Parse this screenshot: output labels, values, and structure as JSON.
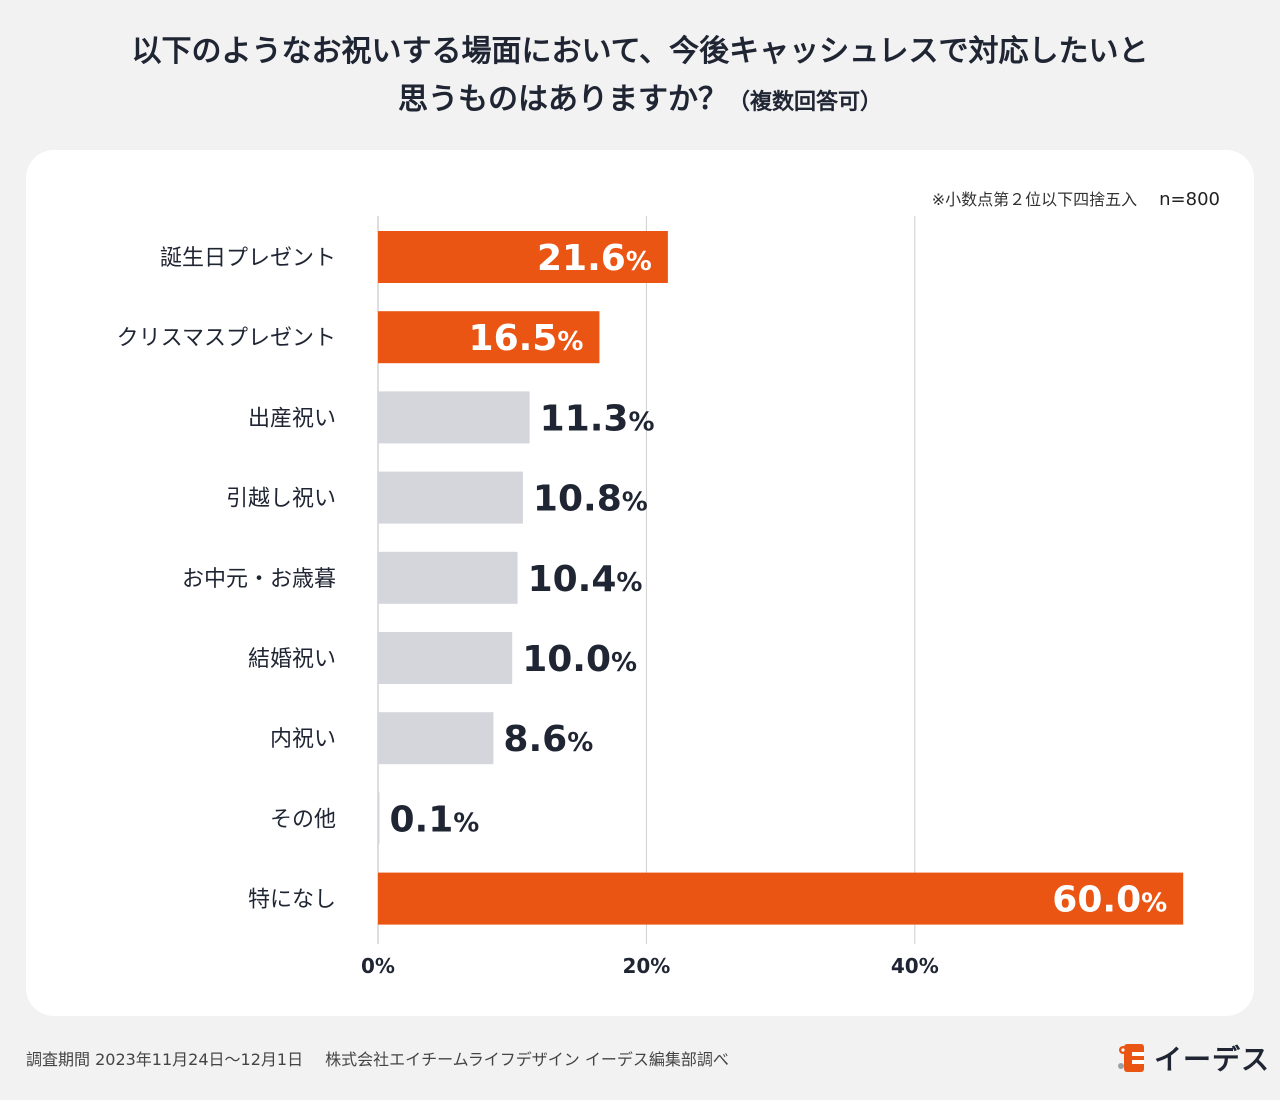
{
  "title": {
    "line1": "以下のようなお祝いする場面において、今後キャッシュレスで対応したいと",
    "line2": "思うものはありますか？",
    "subtitle": "（複数回答可）"
  },
  "note": {
    "rounding": "※小数点第２位以下四捨五入",
    "sample": "n=800"
  },
  "footer": {
    "period": "調査期間 2023年11月24日〜12月1日",
    "source": "株式会社エイチームライフデザイン イーデス編集部調べ"
  },
  "logo": {
    "text": "イーデス",
    "icon": "edes-logo-icon"
  },
  "colors": {
    "accent": "#ea5514",
    "neutral": "#d4d6dc",
    "label_on_bar": "#ffffff",
    "label_dark": "#1f2533",
    "grid": "#cfcfcf"
  },
  "chart_data": {
    "type": "bar",
    "orientation": "horizontal",
    "categories": [
      "誕生日プレゼント",
      "クリスマスプレゼント",
      "出産祝い",
      "引越し祝い",
      "お中元・お歳暮",
      "結婚祝い",
      "内祝い",
      "その他",
      "特になし"
    ],
    "values": [
      21.6,
      16.5,
      11.3,
      10.8,
      10.4,
      10.0,
      8.6,
      0.1,
      60.0
    ],
    "value_labels": [
      "21.6",
      "16.5",
      "11.3",
      "10.8",
      "10.4",
      "10.0",
      "8.6",
      "0.1",
      "60.0"
    ],
    "value_suffix": "%",
    "highlight": [
      true,
      true,
      false,
      false,
      false,
      false,
      false,
      false,
      true
    ],
    "xlim": [
      0,
      60
    ],
    "xticks": [
      0,
      20,
      40
    ],
    "xtick_labels": [
      "0%",
      "20%",
      "40%"
    ],
    "grid": true,
    "xlabel": "",
    "ylabel": ""
  }
}
